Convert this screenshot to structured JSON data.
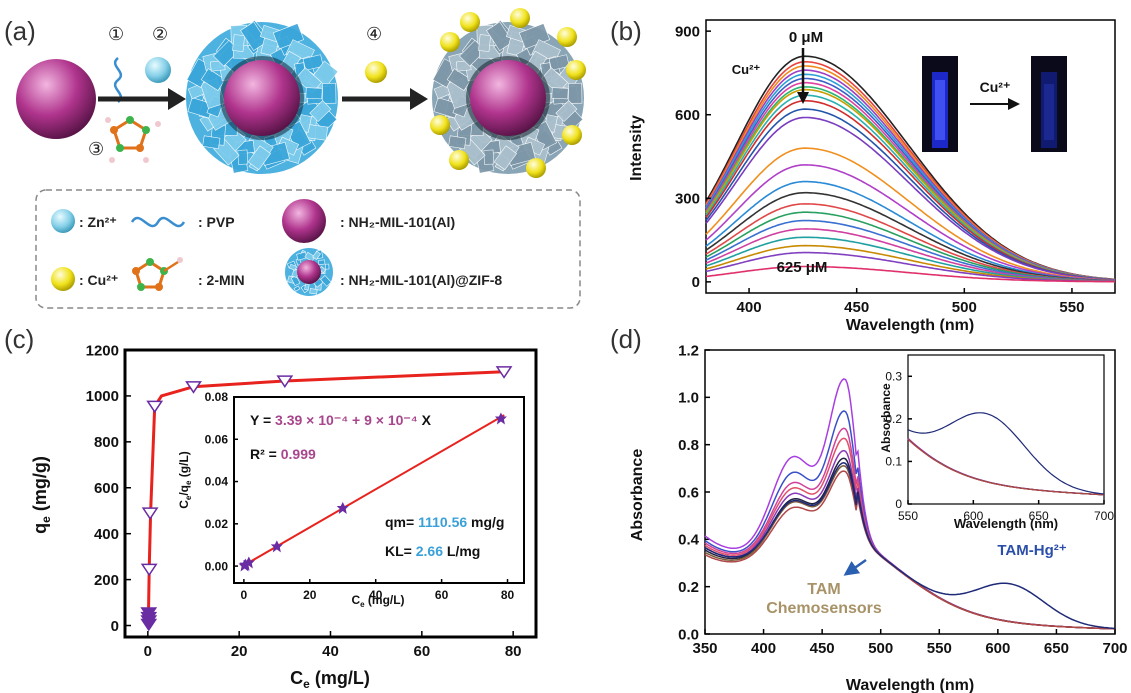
{
  "panel_labels": [
    "(a)",
    "(b)",
    "(c)",
    "(d)"
  ],
  "scheme": {
    "steps": [
      "①",
      "②",
      "③",
      "④"
    ],
    "legend": {
      "zn": ": Zn²⁺",
      "pvp": ": PVP",
      "mil": ": NH₂-MIL-101(Al)",
      "cu": ": Cu²⁺",
      "min": ": 2-MIN",
      "core_shell": ": NH₂-MIL-101(Al)@ZIF-8"
    },
    "colors": {
      "core": "#b0348d",
      "zif_shell": "#4db2e0",
      "zif_shell_cu": "#8aa6b6",
      "zn": "#86d0e8",
      "cu": "#f0e21a",
      "arrow": "#222222"
    }
  },
  "chart_data": [
    {
      "panel": "(b)",
      "type": "line",
      "xlabel": "Wavelength (nm)",
      "ylabel": "Intensity",
      "xlim": [
        380,
        570
      ],
      "ylim": [
        -40,
        940
      ],
      "xticks": [
        400,
        450,
        500,
        550
      ],
      "yticks": [
        0,
        300,
        600,
        900
      ],
      "peak_nm": 426,
      "annotations": {
        "top": "0 μM",
        "bottom": "625 μM",
        "ion": "Cu²⁺",
        "inset_arrow": "Cu²⁺"
      },
      "series": [
        {
          "peak": 810,
          "color": "#222222"
        },
        {
          "peak": 790,
          "color": "#e8443a"
        },
        {
          "peak": 775,
          "color": "#f08a1c"
        },
        {
          "peak": 760,
          "color": "#9c3fc4"
        },
        {
          "peak": 745,
          "color": "#2a9fd6"
        },
        {
          "peak": 730,
          "color": "#3c5ec8"
        },
        {
          "peak": 715,
          "color": "#e040a0"
        },
        {
          "peak": 700,
          "color": "#2bb673"
        },
        {
          "peak": 690,
          "color": "#c8a000"
        },
        {
          "peak": 670,
          "color": "#2ab0b0"
        },
        {
          "peak": 650,
          "color": "#d22d2d"
        },
        {
          "peak": 620,
          "color": "#2255aa"
        },
        {
          "peak": 590,
          "color": "#7a3cc0"
        },
        {
          "peak": 480,
          "color": "#f09020"
        },
        {
          "peak": 420,
          "color": "#b040c8"
        },
        {
          "peak": 360,
          "color": "#2a8ad6"
        },
        {
          "peak": 320,
          "color": "#333333"
        },
        {
          "peak": 280,
          "color": "#e04848"
        },
        {
          "peak": 250,
          "color": "#28a060"
        },
        {
          "peak": 220,
          "color": "#3a70d0"
        },
        {
          "peak": 190,
          "color": "#d040a0"
        },
        {
          "peak": 160,
          "color": "#20a0a0"
        },
        {
          "peak": 130,
          "color": "#c88a00"
        },
        {
          "peak": 105,
          "color": "#8040c0"
        },
        {
          "peak": 55,
          "color": "#e0306a"
        }
      ]
    },
    {
      "panel": "(c)",
      "type": "scatter",
      "xlabel": "Ce (mg/L)",
      "ylabel": "qe (mg/g)",
      "xlim": [
        -5,
        85
      ],
      "ylim": [
        -50,
        1200
      ],
      "xticks": [
        0,
        20,
        40,
        60,
        80
      ],
      "yticks": [
        0,
        200,
        400,
        600,
        800,
        1000,
        1200
      ],
      "points": [
        {
          "x": 0.2,
          "y": 5
        },
        {
          "x": 0.2,
          "y": 20
        },
        {
          "x": 0.2,
          "y": 35
        },
        {
          "x": 0.2,
          "y": 55
        },
        {
          "x": 0.3,
          "y": 245
        },
        {
          "x": 0.5,
          "y": 490
        },
        {
          "x": 1.5,
          "y": 955
        },
        {
          "x": 10,
          "y": 1040
        },
        {
          "x": 30,
          "y": 1065
        },
        {
          "x": 78,
          "y": 1105
        }
      ],
      "fit": [
        {
          "x": 0.1,
          "y": 0
        },
        {
          "x": 0.3,
          "y": 245
        },
        {
          "x": 0.6,
          "y": 490
        },
        {
          "x": 1.5,
          "y": 955
        },
        {
          "x": 3,
          "y": 1000
        },
        {
          "x": 10,
          "y": 1040
        },
        {
          "x": 30,
          "y": 1065
        },
        {
          "x": 78,
          "y": 1105
        }
      ],
      "marker_color": "#6a2ca3",
      "fit_color": "#e8231e",
      "inset": {
        "xlabel": "Ce (mg/L)",
        "ylabel": "Ce/qe (g/L)",
        "xlim": [
          -3,
          85
        ],
        "ylim": [
          -0.008,
          0.08
        ],
        "xticks": [
          0,
          20,
          40,
          60,
          80
        ],
        "yticks": [
          0.0,
          0.02,
          0.04,
          0.06,
          0.08
        ],
        "ytick_labels": [
          "0.00",
          "0.02",
          "0.04",
          "0.06",
          "0.08"
        ],
        "points": [
          {
            "x": 0.2,
            "y": 0.0003
          },
          {
            "x": 0.5,
            "y": 0.0007
          },
          {
            "x": 1.5,
            "y": 0.0017
          },
          {
            "x": 10,
            "y": 0.0093
          },
          {
            "x": 30,
            "y": 0.0275
          },
          {
            "x": 78,
            "y": 0.0698
          }
        ],
        "fit_line": {
          "intercept": 0.000339,
          "slope": 0.0009
        },
        "equation_prefix": "Y = ",
        "equation_value": "3.39 × 10⁻⁴ + 9 × 10⁻⁴",
        "equation_suffix": " X",
        "r2_label": "R² = ",
        "r2_value": "0.999",
        "qm_label": "qm= ",
        "qm_value": "1110.56",
        "qm_unit": " mg/g",
        "kl_label": "KL= ",
        "kl_value": "2.66",
        "kl_unit": " L/mg"
      }
    },
    {
      "panel": "(d)",
      "type": "line",
      "xlabel": "Wavelength (nm)",
      "ylabel": "Absorbance",
      "xlim": [
        350,
        700
      ],
      "ylim": [
        0.0,
        1.2
      ],
      "xticks": [
        350,
        400,
        450,
        500,
        550,
        600,
        650,
        700
      ],
      "yticks": [
        0.0,
        0.2,
        0.4,
        0.6,
        0.8,
        1.0,
        1.2
      ],
      "annotations": {
        "hg": "TAM-Hg²⁺",
        "tam_line1": "TAM",
        "tam_line2": "Chemosensors"
      },
      "series": [
        {
          "p470": 1.07,
          "s425": 0.63,
          "b350": 0.4,
          "color": "#a93ee0"
        },
        {
          "p470": 0.94,
          "s425": 0.57,
          "b350": 0.38,
          "color": "#3a50c8"
        },
        {
          "p470": 0.87,
          "s425": 0.53,
          "b350": 0.37,
          "color": "#d0439a"
        },
        {
          "p470": 0.83,
          "s425": 0.51,
          "b350": 0.36,
          "color": "#e0506a"
        },
        {
          "p470": 0.78,
          "s425": 0.49,
          "b350": 0.35,
          "color": "#8a3ab8"
        },
        {
          "p470": 0.75,
          "s425": 0.47,
          "b350": 0.34,
          "color": "#222244"
        },
        {
          "p470": 0.72,
          "s425": 0.46,
          "b350": 0.33,
          "color": "#7b5c3a"
        },
        {
          "p470": 0.7,
          "s425": 0.44,
          "b350": 0.32,
          "color": "#b04848"
        }
      ],
      "hg_series": {
        "p470": 0.73,
        "s425": 0.46,
        "b350": 0.35,
        "band_peak": 0.26,
        "band_center": 610,
        "color": "#1e2a78"
      },
      "inset": {
        "xlabel": "Wavelength (nm)",
        "ylabel": "Absorbance",
        "xlim": [
          550,
          700
        ],
        "ylim": [
          0.0,
          0.35
        ],
        "xticks": [
          550,
          600,
          650,
          700
        ],
        "yticks": [
          0.0,
          0.1,
          0.2,
          0.3
        ]
      }
    }
  ]
}
